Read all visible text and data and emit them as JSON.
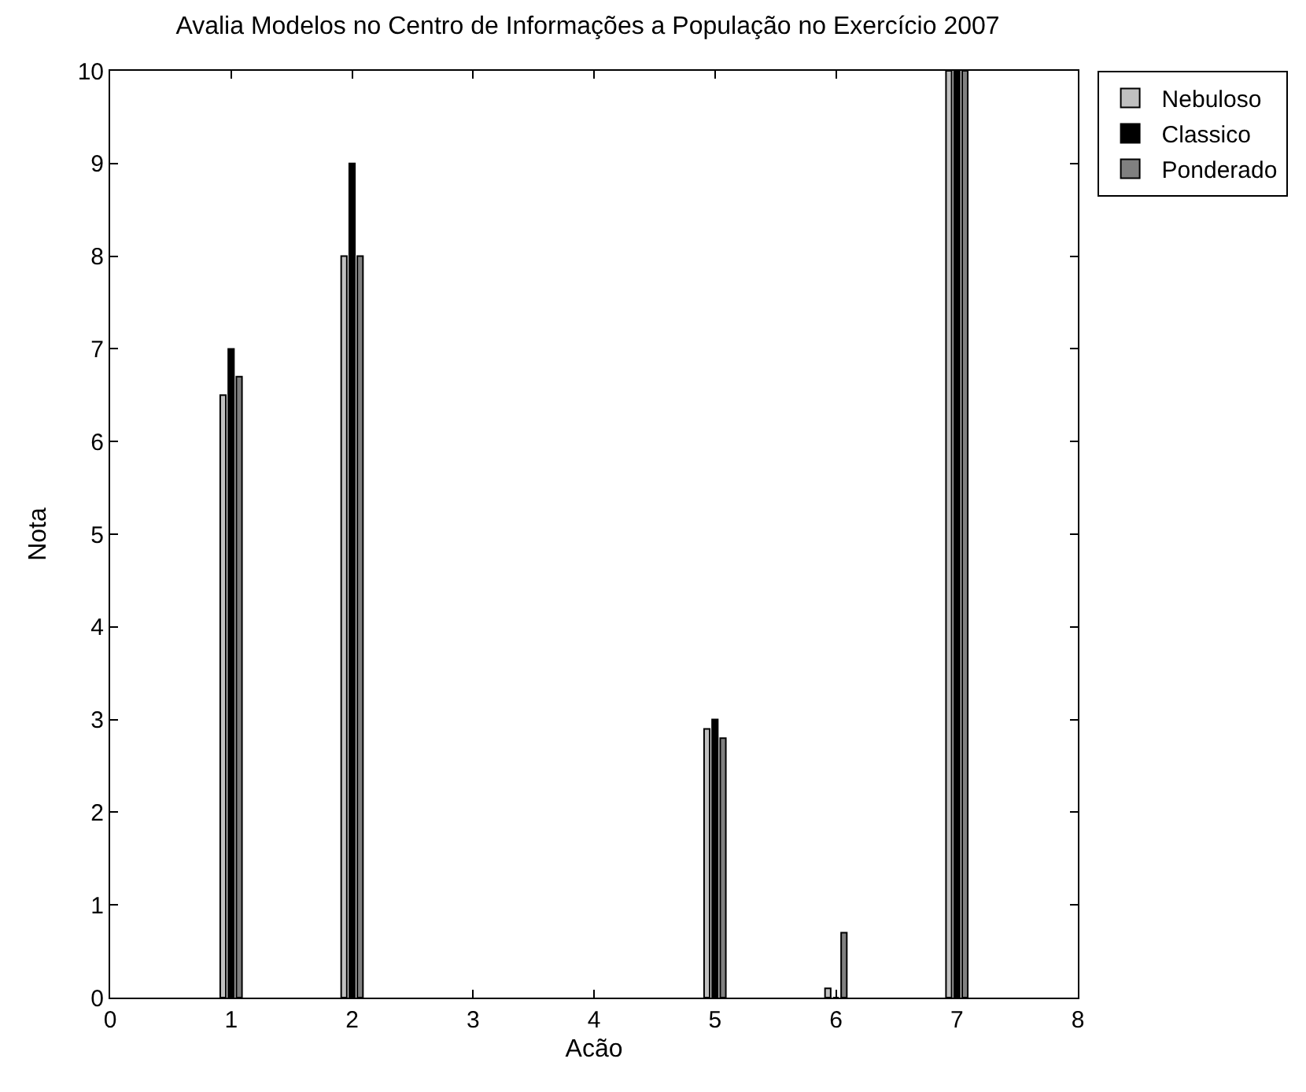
{
  "chart_data": {
    "type": "bar",
    "title": "Avalia Modelos no Centro de Informações a População no Exercício 2007",
    "xlabel": "Acão",
    "ylabel": "Nota",
    "x": [
      1,
      2,
      5,
      6,
      7
    ],
    "series": [
      {
        "name": "Nebuloso",
        "color": "#c0c0c0",
        "values": [
          6.5,
          8,
          2.9,
          0.1,
          10
        ]
      },
      {
        "name": "Classico",
        "color": "#000000",
        "values": [
          7,
          9,
          3,
          0,
          10
        ]
      },
      {
        "name": "Ponderado",
        "color": "#808080",
        "values": [
          6.7,
          8,
          2.8,
          0.7,
          10
        ]
      }
    ],
    "xlim": [
      0,
      8
    ],
    "xticks": [
      0,
      1,
      2,
      3,
      4,
      5,
      6,
      7,
      8
    ],
    "ylim": [
      0,
      10
    ],
    "yticks": [
      0,
      1,
      2,
      3,
      4,
      5,
      6,
      7,
      8,
      9,
      10
    ],
    "legend": "top right"
  }
}
